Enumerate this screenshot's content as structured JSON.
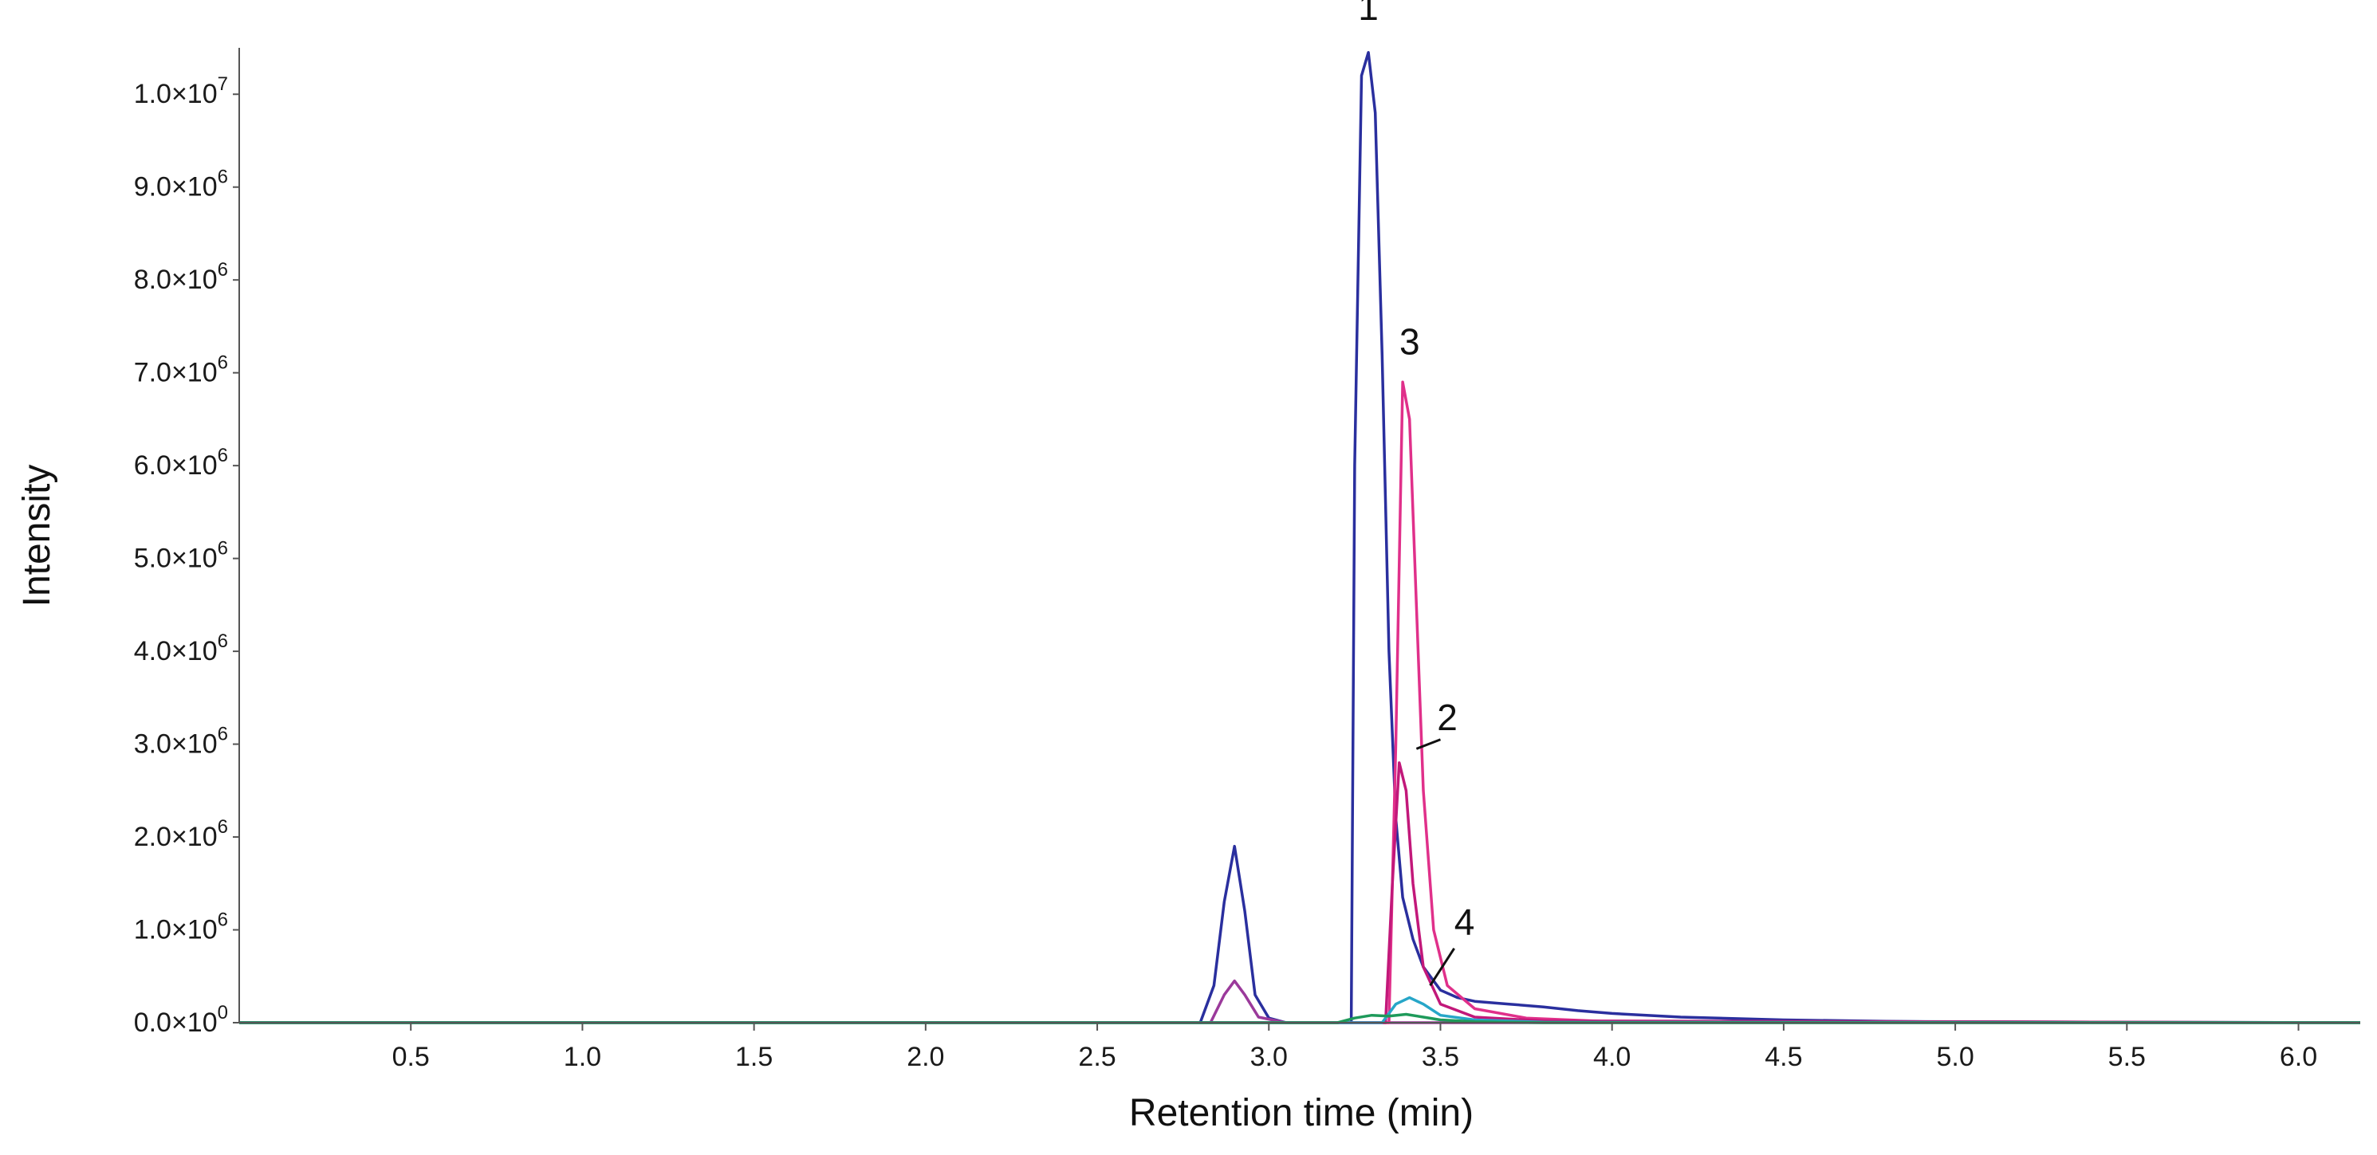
{
  "chart_data": {
    "type": "line",
    "title": "",
    "xlabel": "Retention time (min)",
    "ylabel": "Intensity",
    "xlim": [
      0,
      6.18
    ],
    "ylim": [
      0,
      10500000
    ],
    "grid": false,
    "legend": "none",
    "x_ticks": [
      {
        "value": 0.5,
        "label": "0.5"
      },
      {
        "value": 1.0,
        "label": "1.0"
      },
      {
        "value": 1.5,
        "label": "1.5"
      },
      {
        "value": 2.0,
        "label": "2.0"
      },
      {
        "value": 2.5,
        "label": "2.5"
      },
      {
        "value": 3.0,
        "label": "3.0"
      },
      {
        "value": 3.5,
        "label": "3.5"
      },
      {
        "value": 4.0,
        "label": "4.0"
      },
      {
        "value": 4.5,
        "label": "4.5"
      },
      {
        "value": 5.0,
        "label": "5.0"
      },
      {
        "value": 5.5,
        "label": "5.5"
      },
      {
        "value": 6.0,
        "label": "6.0"
      }
    ],
    "y_ticks": [
      {
        "value": 0,
        "mant": "0.0",
        "exp": "0"
      },
      {
        "value": 1000000,
        "mant": "1.0",
        "exp": "6"
      },
      {
        "value": 2000000,
        "mant": "2.0",
        "exp": "6"
      },
      {
        "value": 3000000,
        "mant": "3.0",
        "exp": "6"
      },
      {
        "value": 4000000,
        "mant": "4.0",
        "exp": "6"
      },
      {
        "value": 5000000,
        "mant": "5.0",
        "exp": "6"
      },
      {
        "value": 6000000,
        "mant": "6.0",
        "exp": "6"
      },
      {
        "value": 7000000,
        "mant": "7.0",
        "exp": "6"
      },
      {
        "value": 8000000,
        "mant": "8.0",
        "exp": "6"
      },
      {
        "value": 9000000,
        "mant": "9.0",
        "exp": "6"
      },
      {
        "value": 10000000,
        "mant": "1.0",
        "exp": "7"
      }
    ],
    "series": [
      {
        "color": "#2a2f9e",
        "x": [
          0,
          2.8,
          2.84,
          2.87,
          2.9,
          2.93,
          2.96,
          3.0,
          3.05,
          3.1,
          3.2,
          3.24,
          3.25,
          3.27,
          3.29,
          3.31,
          3.33,
          3.35,
          3.37,
          3.39,
          3.42,
          3.45,
          3.5,
          3.55,
          3.6,
          3.7,
          3.8,
          3.9,
          4.0,
          4.2,
          4.5,
          4.8,
          5.0,
          5.5,
          6.18
        ],
        "y": [
          0,
          0,
          400000,
          1300000,
          1900000,
          1200000,
          300000,
          50000,
          0,
          0,
          0,
          0,
          6000000,
          10200000,
          10450000,
          9800000,
          7200000,
          4000000,
          2200000,
          1350000,
          900000,
          600000,
          350000,
          270000,
          230000,
          200000,
          170000,
          130000,
          100000,
          60000,
          30000,
          15000,
          10000,
          5000,
          0
        ]
      },
      {
        "color": "#9b3a9b",
        "x": [
          0,
          2.83,
          2.87,
          2.9,
          2.93,
          2.97,
          3.05,
          6.18
        ],
        "y": [
          0,
          0,
          300000,
          450000,
          300000,
          60000,
          0,
          0
        ]
      },
      {
        "color": "#e0308a",
        "x": [
          0,
          3.35,
          3.37,
          3.39,
          3.41,
          3.43,
          3.45,
          3.48,
          3.52,
          3.6,
          3.75,
          4.0,
          6.18
        ],
        "y": [
          0,
          0,
          3000000,
          6900000,
          6500000,
          4500000,
          2500000,
          1000000,
          400000,
          150000,
          50000,
          10000,
          0
        ]
      },
      {
        "color": "#c2187a",
        "x": [
          0,
          3.34,
          3.36,
          3.38,
          3.4,
          3.42,
          3.45,
          3.5,
          3.6,
          3.8,
          6.18
        ],
        "y": [
          0,
          0,
          1500000,
          2800000,
          2500000,
          1500000,
          600000,
          200000,
          60000,
          20000,
          0
        ]
      },
      {
        "color": "#27a6c8",
        "x": [
          0,
          3.33,
          3.37,
          3.41,
          3.45,
          3.5,
          3.6,
          3.8,
          6.18
        ],
        "y": [
          0,
          0,
          200000,
          270000,
          200000,
          80000,
          30000,
          5000,
          0
        ]
      },
      {
        "color": "#1e9a5a",
        "x": [
          0,
          3.2,
          3.25,
          3.3,
          3.35,
          3.4,
          3.45,
          3.5,
          3.6,
          3.8,
          6.18
        ],
        "y": [
          0,
          0,
          50000,
          80000,
          70000,
          90000,
          60000,
          30000,
          10000,
          0,
          0
        ]
      }
    ],
    "annotations": [
      {
        "text": "1",
        "x": 3.29,
        "y": 10800000
      },
      {
        "text": "3",
        "x": 3.41,
        "y": 7200000
      },
      {
        "text": "2",
        "x": 3.52,
        "y": 3150000,
        "pointer": {
          "x1": 3.5,
          "y1": 3050000,
          "x2": 3.43,
          "y2": 2950000
        }
      },
      {
        "text": "4",
        "x": 3.57,
        "y": 950000,
        "pointer": {
          "x1": 3.54,
          "y1": 800000,
          "x2": 3.47,
          "y2": 400000
        }
      }
    ]
  }
}
